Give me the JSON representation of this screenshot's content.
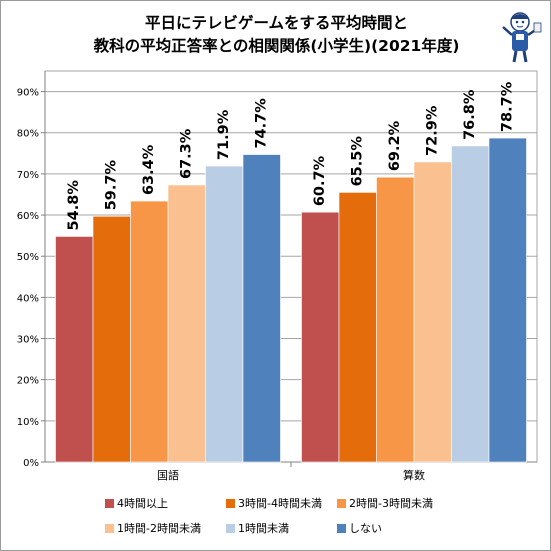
{
  "title_line1": "平日にテレビゲームをする平均時間と",
  "title_line2": "教科の平均正答率との相関関係(小学生)(2021年度)",
  "chart_data": {
    "type": "bar",
    "categories": [
      "国語",
      "算数"
    ],
    "series": [
      {
        "name": "4時間以上",
        "color": "#c0504d",
        "values": [
          54.8,
          60.7
        ],
        "labels": [
          "54.8%",
          "60.7%"
        ]
      },
      {
        "name": "3時間-4時間未満",
        "color": "#e46c0a",
        "values": [
          59.7,
          65.5
        ],
        "labels": [
          "59.7%",
          "65.5%"
        ]
      },
      {
        "name": "2時間-3時間未満",
        "color": "#f79646",
        "values": [
          63.4,
          69.2
        ],
        "labels": [
          "63.4%",
          "69.2%"
        ]
      },
      {
        "name": "1時間-2時間未満",
        "color": "#fac090",
        "values": [
          67.3,
          72.9
        ],
        "labels": [
          "67.3%",
          "72.9%"
        ]
      },
      {
        "name": "1時間未満",
        "color": "#b9cde5",
        "values": [
          71.9,
          76.8
        ],
        "labels": [
          "71.9%",
          "76.8%"
        ]
      },
      {
        "name": "しない",
        "color": "#4f81bd",
        "values": [
          74.7,
          78.7
        ],
        "labels": [
          "74.7%",
          "78.7%"
        ]
      }
    ],
    "ylim": [
      0,
      95
    ],
    "yticks": [
      0,
      10,
      20,
      30,
      40,
      50,
      60,
      70,
      80,
      90
    ],
    "ytick_labels": [
      "0%",
      "10%",
      "20%",
      "30%",
      "40%",
      "50%",
      "60%",
      "70%",
      "80%",
      "90%"
    ],
    "grid": true,
    "legend_position": "bottom"
  }
}
